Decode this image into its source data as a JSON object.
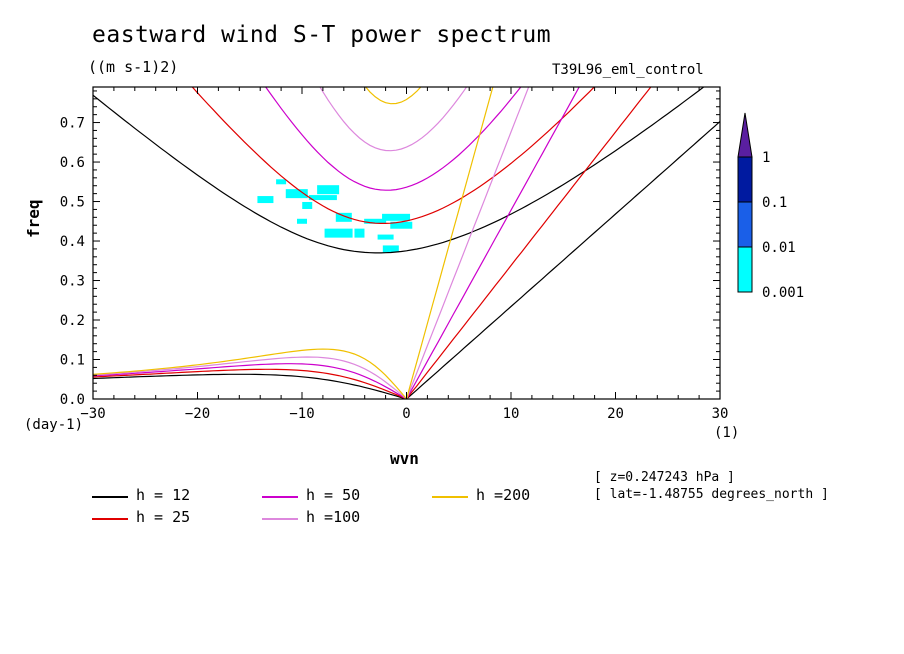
{
  "chart_data": {
    "type": "line",
    "title": "eastward wind S-T power spectrum",
    "units": "((m s-1)2)",
    "run_name": "T39L96_eml_control",
    "xlabel": "wvn",
    "ylabel": "freq",
    "y_unit": "(day-1)",
    "x_unit": "(1)",
    "xlim": [
      -30,
      30
    ],
    "ylim": [
      0,
      0.79
    ],
    "x_ticks": [
      "−30",
      "−20",
      "−10",
      "0",
      "10",
      "20",
      "30"
    ],
    "y_ticks": [
      "0.0",
      "0.1",
      "0.2",
      "0.3",
      "0.4",
      "0.5",
      "0.6",
      "0.7"
    ],
    "info_lines": [
      "[ z=0.247243 hPa ]",
      "[ lat=-1.48755 degrees_north ]"
    ],
    "series": [
      {
        "name": "h = 12",
        "color": "#000000",
        "equivalent_depth_m": 12
      },
      {
        "name": "h = 25",
        "color": "#e00000",
        "equivalent_depth_m": 25
      },
      {
        "name": "h = 50",
        "color": "#cc00cc",
        "equivalent_depth_m": 50
      },
      {
        "name": "h =100",
        "color": "#dd88dd",
        "equivalent_depth_m": 100
      },
      {
        "name": "h =200",
        "color": "#f0c000",
        "equivalent_depth_m": 200
      }
    ],
    "colorbar": {
      "labels": [
        "1",
        "0.1",
        "0.01",
        "0.001"
      ],
      "colors": [
        "#5a1fa0",
        "#001aa0",
        "#1a5fe8",
        "#00ffff"
      ]
    },
    "power_patches": [
      {
        "x": -12.0,
        "y": 0.55
      },
      {
        "x": -13.5,
        "y": 0.505
      },
      {
        "x": -10.5,
        "y": 0.52
      },
      {
        "x": -8.0,
        "y": 0.51
      },
      {
        "x": -9.5,
        "y": 0.49
      },
      {
        "x": -6.0,
        "y": 0.46
      },
      {
        "x": -3.0,
        "y": 0.45
      },
      {
        "x": -1.0,
        "y": 0.46
      },
      {
        "x": -4.5,
        "y": 0.42
      },
      {
        "x": -2.0,
        "y": 0.41
      },
      {
        "x": -0.5,
        "y": 0.44
      },
      {
        "x": -6.5,
        "y": 0.42
      },
      {
        "x": -10.0,
        "y": 0.45
      },
      {
        "x": -1.5,
        "y": 0.38
      },
      {
        "x": -7.5,
        "y": 0.53
      }
    ]
  }
}
